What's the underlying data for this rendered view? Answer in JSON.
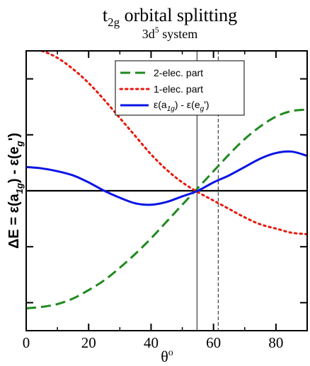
{
  "chart_data": {
    "type": "line",
    "title": {
      "main": "t",
      "sub": "2g",
      "rest": " orbital splitting"
    },
    "subtitle": {
      "main": "3d",
      "sup": "5",
      "rest": " system"
    },
    "xlabel": {
      "main": "θ",
      "sup": "o"
    },
    "ylabel": {
      "p1": "ΔE = ε(a",
      "s1": "1g",
      "p2": ") - ε(e",
      "s2": "g",
      "p3": "')"
    },
    "xlim": [
      0,
      90
    ],
    "ylim": [
      -1.0,
      1.0
    ],
    "xticks": [
      {
        "value": 0,
        "label": "0"
      },
      {
        "value": 20,
        "label": "20"
      },
      {
        "value": 40,
        "label": "40"
      },
      {
        "value": 60,
        "label": "60"
      },
      {
        "value": 80,
        "label": "80"
      }
    ],
    "yticks": [
      -0.8,
      -0.4,
      0.0,
      0.4,
      0.8
    ],
    "reference_lines": [
      {
        "axis": "y",
        "value": 0,
        "style": "solid-thick"
      },
      {
        "axis": "x",
        "value": 54.7,
        "style": "solid-thin"
      },
      {
        "axis": "x",
        "value": 61.5,
        "style": "dashed-thin"
      }
    ],
    "legend": {
      "position": "top-right",
      "entries": [
        {
          "series": 0,
          "label": "2-elec. part"
        },
        {
          "series": 1,
          "label": "1-elec. part"
        },
        {
          "series": 2,
          "label_parts": {
            "p1": "ε(a",
            "s1": "1g",
            "p2": ") - ε(e",
            "s2": "g",
            "p3": "')"
          }
        }
      ]
    },
    "series": [
      {
        "color": "#1f8a1f",
        "dash": "dashed",
        "x": [
          0,
          5,
          10,
          15,
          20,
          25,
          30,
          35,
          40,
          45,
          50,
          55,
          60,
          65,
          70,
          75,
          80,
          85,
          90
        ],
        "y": [
          -0.84,
          -0.83,
          -0.81,
          -0.77,
          -0.71,
          -0.64,
          -0.55,
          -0.45,
          -0.34,
          -0.22,
          -0.1,
          0.02,
          0.14,
          0.26,
          0.37,
          0.46,
          0.53,
          0.57,
          0.58
        ]
      },
      {
        "color": "#e8170c",
        "dash": "dotted",
        "x": [
          0,
          5,
          10,
          15,
          20,
          25,
          30,
          35,
          40,
          45,
          50,
          55,
          60,
          65,
          70,
          75,
          80,
          85,
          90
        ],
        "y": [
          1.02,
          1.0,
          0.95,
          0.87,
          0.77,
          0.65,
          0.52,
          0.39,
          0.26,
          0.15,
          0.06,
          -0.01,
          -0.07,
          -0.13,
          -0.19,
          -0.24,
          -0.27,
          -0.3,
          -0.31
        ]
      },
      {
        "color": "#0a14e6",
        "dash": "solid",
        "x": [
          0,
          5,
          10,
          15,
          20,
          25,
          30,
          35,
          40,
          45,
          50,
          55,
          60,
          65,
          70,
          75,
          80,
          85,
          90
        ],
        "y": [
          0.17,
          0.16,
          0.14,
          0.11,
          0.06,
          0.0,
          -0.05,
          -0.09,
          -0.1,
          -0.08,
          -0.04,
          0.0,
          0.06,
          0.11,
          0.17,
          0.23,
          0.27,
          0.28,
          0.25
        ]
      }
    ]
  }
}
